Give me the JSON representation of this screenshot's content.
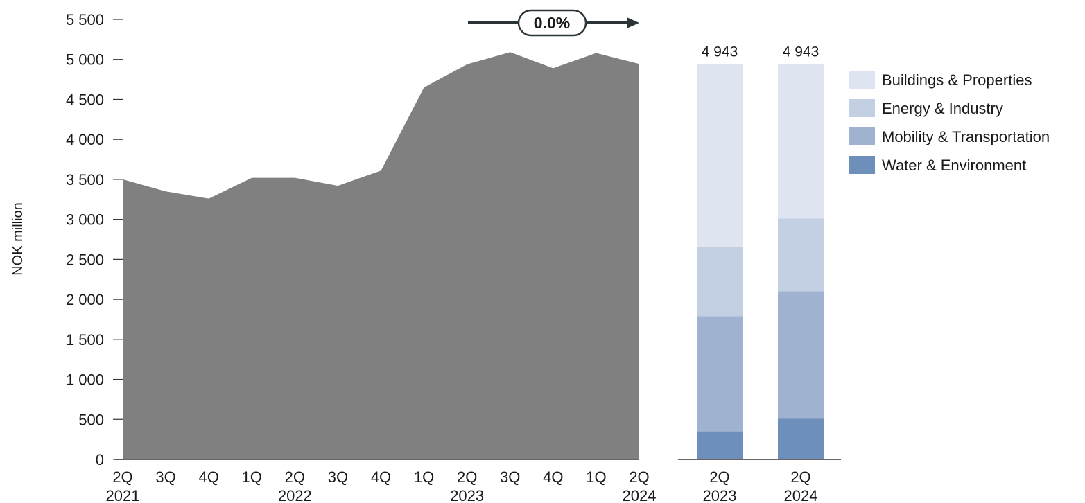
{
  "chart_data": [
    {
      "type": "area",
      "ylabel": "NOK million",
      "ylim": [
        0,
        5500
      ],
      "yticks": [
        "0",
        "500",
        "1 000",
        "1 500",
        "2 000",
        "2 500",
        "3 000",
        "3 500",
        "4 000",
        "4 500",
        "5 000",
        "5 500"
      ],
      "ytick_values": [
        0,
        500,
        1000,
        1500,
        2000,
        2500,
        3000,
        3500,
        4000,
        4500,
        5000,
        5500
      ],
      "x": [
        {
          "q": "2Q",
          "year": "2021"
        },
        {
          "q": "3Q",
          "year": ""
        },
        {
          "q": "4Q",
          "year": ""
        },
        {
          "q": "1Q",
          "year": ""
        },
        {
          "q": "2Q",
          "year": "2022"
        },
        {
          "q": "3Q",
          "year": ""
        },
        {
          "q": "4Q",
          "year": ""
        },
        {
          "q": "1Q",
          "year": ""
        },
        {
          "q": "2Q",
          "year": "2023"
        },
        {
          "q": "3Q",
          "year": ""
        },
        {
          "q": "4Q",
          "year": ""
        },
        {
          "q": "1Q",
          "year": ""
        },
        {
          "q": "2Q",
          "year": "2024"
        }
      ],
      "values": [
        3500,
        3350,
        3260,
        3520,
        3520,
        3420,
        3610,
        4650,
        4940,
        5090,
        4890,
        5080,
        4943
      ],
      "fill_color": "#808080",
      "annotation": {
        "text": "0.0%"
      }
    },
    {
      "type": "bar",
      "stacked": true,
      "categories": [
        {
          "q": "2Q",
          "year": "2023"
        },
        {
          "q": "2Q",
          "year": "2024"
        }
      ],
      "totals": [
        "4 943",
        "4 943"
      ],
      "total_values": [
        4943,
        4943
      ],
      "series": [
        {
          "name": "Water & Environment",
          "color": "#6f8fbb",
          "values": [
            350,
            510
          ]
        },
        {
          "name": "Mobility & Transportation",
          "color": "#9fb3d0",
          "values": [
            1440,
            1590
          ]
        },
        {
          "name": "Energy & Industry",
          "color": "#c3cfe2",
          "values": [
            870,
            910
          ]
        },
        {
          "name": "Buildings & Properties",
          "color": "#dfe5f0",
          "values": [
            2283,
            1933
          ]
        }
      ],
      "legend_position": "right",
      "legend_order": [
        "Buildings & Properties",
        "Energy & Industry",
        "Mobility & Transportation",
        "Water & Environment"
      ]
    }
  ]
}
